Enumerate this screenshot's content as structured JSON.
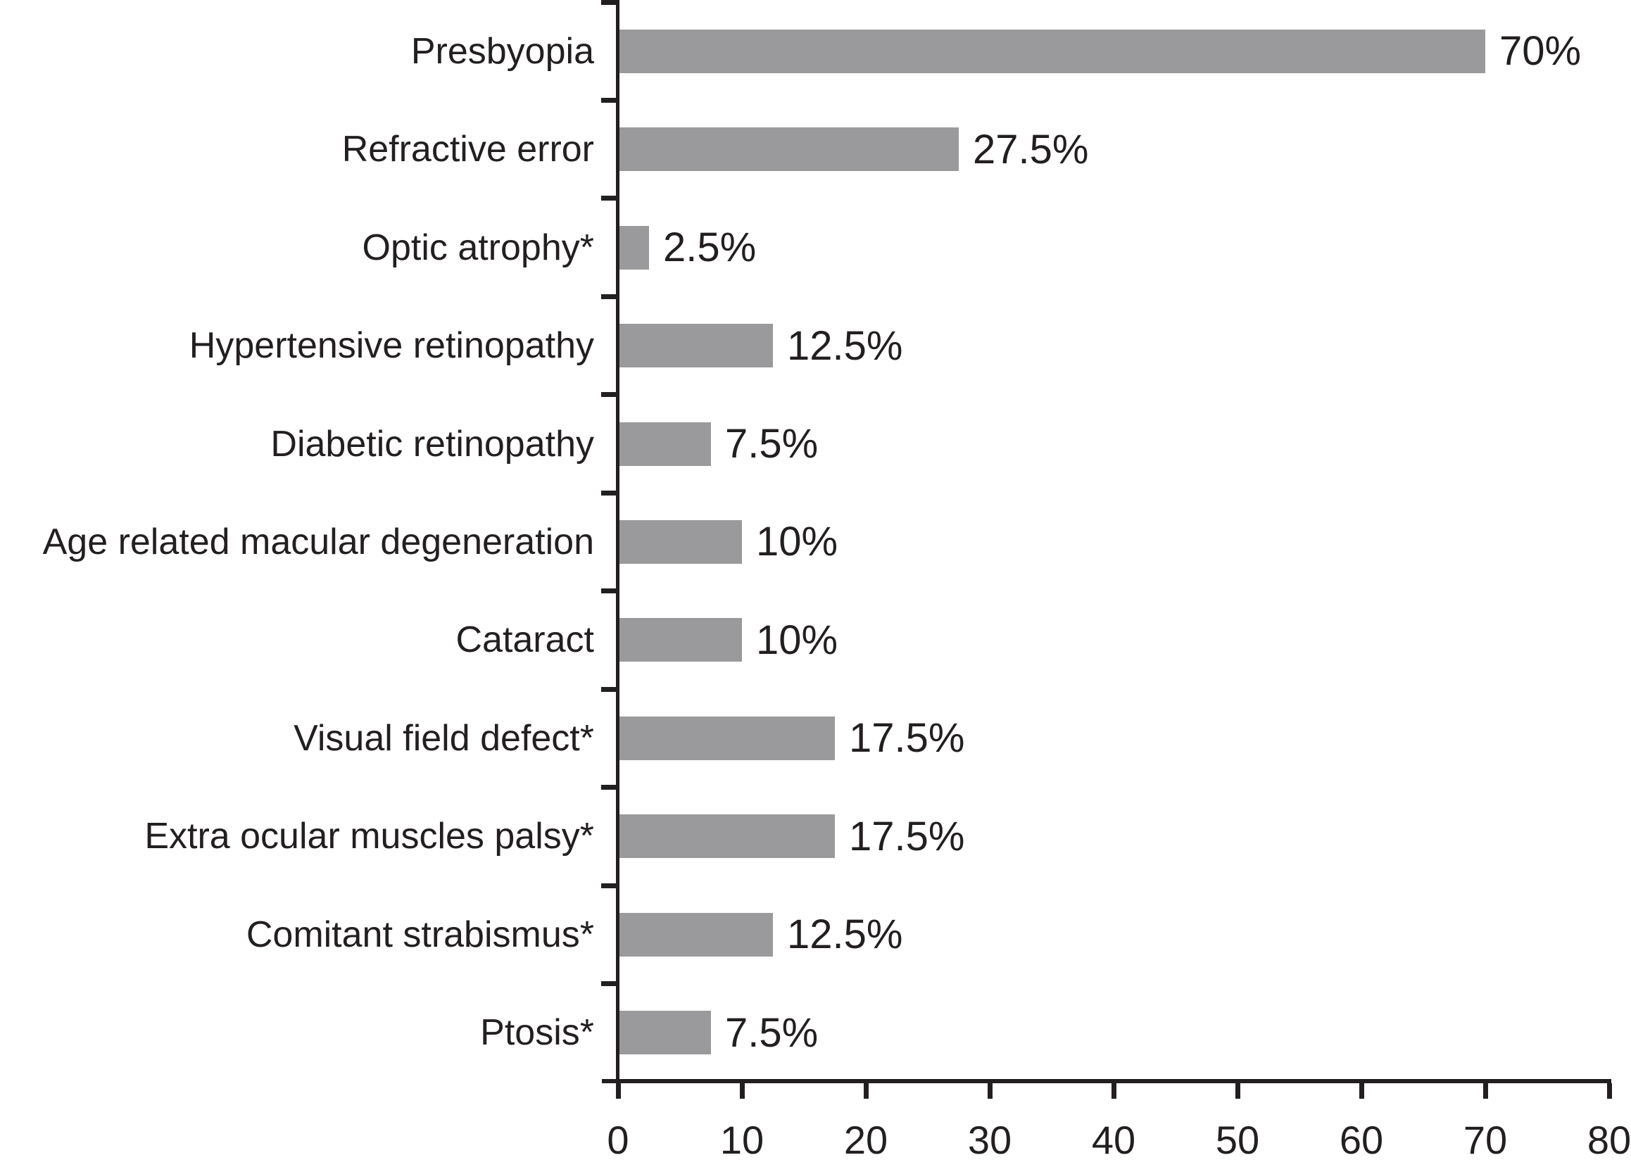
{
  "chart_data": {
    "type": "bar",
    "orientation": "horizontal",
    "title": "",
    "xlabel": "",
    "ylabel": "",
    "categories": [
      "Presbyopia",
      "Refractive error",
      "Optic atrophy*",
      "Hypertensive retinopathy",
      "Diabetic retinopathy",
      "Age related macular degeneration",
      "Cataract",
      "Visual field defect*",
      "Extra ocular muscles palsy*",
      "Comitant strabismus*",
      "Ptosis*"
    ],
    "values": [
      70,
      27.5,
      2.5,
      12.5,
      7.5,
      10,
      10,
      17.5,
      17.5,
      12.5,
      7.5
    ],
    "value_labels": [
      "70%",
      "27.5%",
      "2.5%",
      "12.5%",
      "7.5%",
      "10%",
      "10%",
      "17.5%",
      "17.5%",
      "12.5%",
      "7.5%"
    ],
    "x_ticks": [
      "0",
      "10",
      "20",
      "30",
      "40",
      "50",
      "60",
      "70",
      "80"
    ],
    "xlim": [
      0,
      80
    ],
    "grid": false,
    "legend": false,
    "bar_color": "#9a9a9c",
    "axis_color": "#231f20",
    "text_color": "#231f20"
  }
}
